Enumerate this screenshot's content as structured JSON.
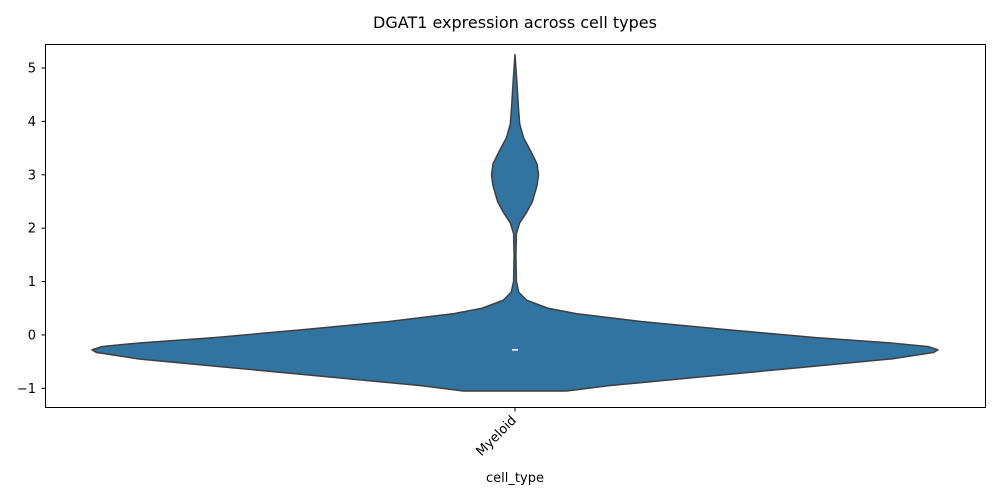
{
  "chart_data": {
    "type": "violin",
    "title": "DGAT1 expression across cell types",
    "xlabel": "cell_type",
    "ylabel": "",
    "categories": [
      "Myeloid"
    ],
    "ylim": [
      -1.35,
      5.45
    ],
    "yticks": [
      -1,
      0,
      1,
      2,
      3,
      4,
      5
    ],
    "grid": false,
    "violins": [
      {
        "category": "Myeloid",
        "color": "#3274a1",
        "edge_color": "#3f3f3f",
        "median": -0.28,
        "density_profile": [
          {
            "y": -1.05,
            "w": 0.11
          },
          {
            "y": -0.95,
            "w": 0.2
          },
          {
            "y": -0.8,
            "w": 0.38
          },
          {
            "y": -0.6,
            "w": 0.62
          },
          {
            "y": -0.45,
            "w": 0.8
          },
          {
            "y": -0.33,
            "w": 0.89
          },
          {
            "y": -0.28,
            "w": 0.9
          },
          {
            "y": -0.22,
            "w": 0.88
          },
          {
            "y": -0.15,
            "w": 0.8
          },
          {
            "y": -0.05,
            "w": 0.64
          },
          {
            "y": 0.1,
            "w": 0.45
          },
          {
            "y": 0.25,
            "w": 0.27
          },
          {
            "y": 0.4,
            "w": 0.13
          },
          {
            "y": 0.5,
            "w": 0.07
          },
          {
            "y": 0.65,
            "w": 0.025
          },
          {
            "y": 0.8,
            "w": 0.008
          },
          {
            "y": 1.0,
            "w": 0.003
          },
          {
            "y": 1.5,
            "w": 0.002
          },
          {
            "y": 1.9,
            "w": 0.003
          },
          {
            "y": 2.1,
            "w": 0.01
          },
          {
            "y": 2.3,
            "w": 0.025
          },
          {
            "y": 2.5,
            "w": 0.037
          },
          {
            "y": 2.8,
            "w": 0.047
          },
          {
            "y": 3.0,
            "w": 0.05
          },
          {
            "y": 3.2,
            "w": 0.047
          },
          {
            "y": 3.45,
            "w": 0.033
          },
          {
            "y": 3.7,
            "w": 0.018
          },
          {
            "y": 3.95,
            "w": 0.01
          },
          {
            "y": 4.3,
            "w": 0.007
          },
          {
            "y": 4.6,
            "w": 0.005
          },
          {
            "y": 5.0,
            "w": 0.002
          },
          {
            "y": 5.25,
            "w": 0.0
          }
        ]
      }
    ]
  }
}
